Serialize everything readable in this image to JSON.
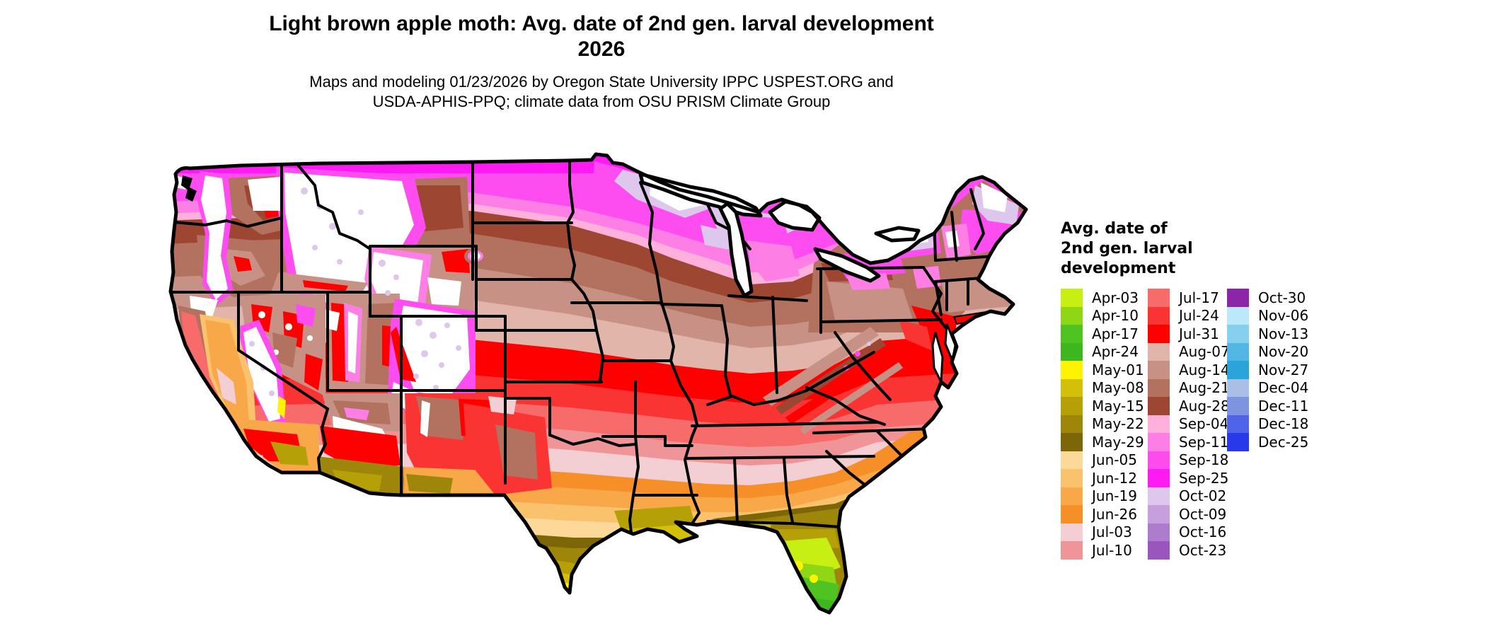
{
  "header": {
    "title_line1": "Light brown apple moth: Avg. date of 2nd gen. larval development",
    "title_line2": "2026",
    "subtitle_line1": "Maps and modeling 01/23/2026 by Oregon State University IPPC USPEST.ORG and",
    "subtitle_line2": "USDA-APHIS-PPQ; climate data from OSU PRISM Climate Group"
  },
  "legend": {
    "title_lines": [
      "Avg. date of",
      "2nd gen. larval",
      "development"
    ],
    "columns": [
      [
        {
          "label": "Apr-03",
          "color": "#C8EF13"
        },
        {
          "label": "Apr-10",
          "color": "#8FD615"
        },
        {
          "label": "Apr-17",
          "color": "#4FC321"
        },
        {
          "label": "Apr-24",
          "color": "#3CB71F"
        },
        {
          "label": "May-01",
          "color": "#FEF300"
        },
        {
          "label": "May-08",
          "color": "#D4C009"
        },
        {
          "label": "May-15",
          "color": "#B5A107"
        },
        {
          "label": "May-22",
          "color": "#9D8609"
        },
        {
          "label": "May-29",
          "color": "#7C6608"
        },
        {
          "label": "Jun-05",
          "color": "#FCD998"
        },
        {
          "label": "Jun-12",
          "color": "#FBC26D"
        },
        {
          "label": "Jun-19",
          "color": "#F9A849"
        },
        {
          "label": "Jun-26",
          "color": "#F78F28"
        },
        {
          "label": "Jul-03",
          "color": "#F3CFD4"
        },
        {
          "label": "Jul-10",
          "color": "#F09597"
        }
      ],
      [
        {
          "label": "Jul-17",
          "color": "#F86B6B"
        },
        {
          "label": "Jul-24",
          "color": "#FA3333"
        },
        {
          "label": "Jul-31",
          "color": "#FE0000"
        },
        {
          "label": "Aug-07",
          "color": "#E1B5AA"
        },
        {
          "label": "Aug-14",
          "color": "#C79285"
        },
        {
          "label": "Aug-21",
          "color": "#B37160"
        },
        {
          "label": "Aug-28",
          "color": "#9D4732"
        },
        {
          "label": "Sep-04",
          "color": "#FFB0DD"
        },
        {
          "label": "Sep-11",
          "color": "#FD7FE5"
        },
        {
          "label": "Sep-18",
          "color": "#FE4CEF"
        },
        {
          "label": "Sep-25",
          "color": "#FD1AF3"
        },
        {
          "label": "Oct-02",
          "color": "#DDC7ED"
        },
        {
          "label": "Oct-09",
          "color": "#C5A0DD"
        },
        {
          "label": "Oct-16",
          "color": "#AD7CCD"
        },
        {
          "label": "Oct-23",
          "color": "#9B56BD"
        }
      ],
      [
        {
          "label": "Oct-30",
          "color": "#8C26A9"
        },
        {
          "label": "Nov-06",
          "color": "#BBE9FA"
        },
        {
          "label": "Nov-13",
          "color": "#86CFEF"
        },
        {
          "label": "Nov-20",
          "color": "#52B7E5"
        },
        {
          "label": "Nov-27",
          "color": "#2AA4D9"
        },
        {
          "label": "Dec-04",
          "color": "#A9BFE5"
        },
        {
          "label": "Dec-11",
          "color": "#7F94E1"
        },
        {
          "label": "Dec-18",
          "color": "#5064EB"
        },
        {
          "label": "Dec-25",
          "color": "#2739E9"
        }
      ]
    ]
  }
}
